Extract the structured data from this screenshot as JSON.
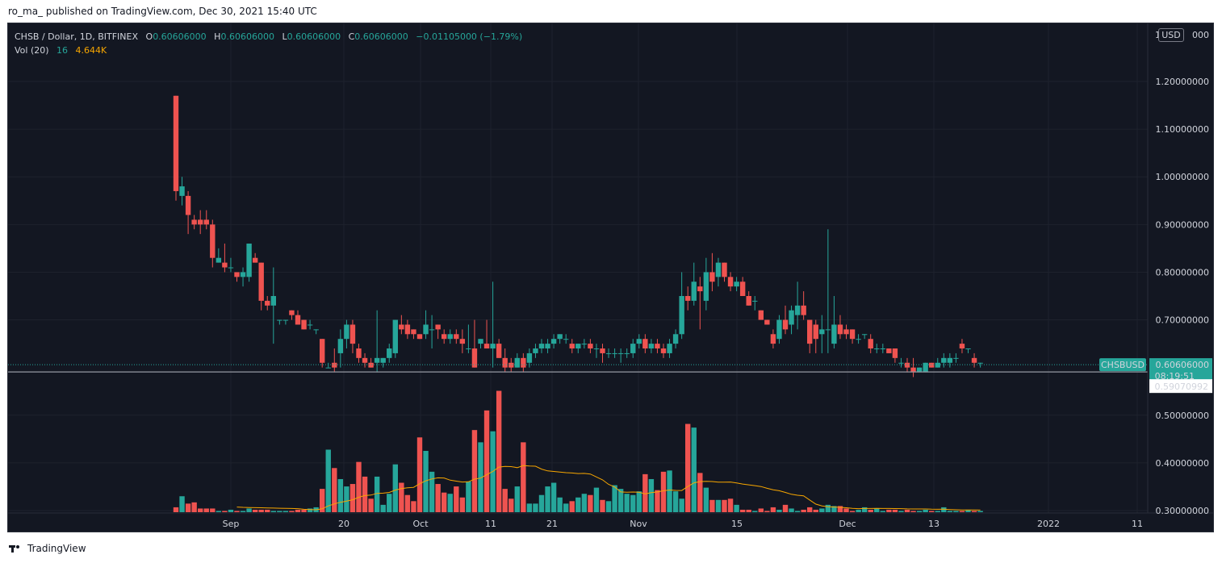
{
  "header": {
    "published_line": "ro_ma_ published on TradingView.com, Dec 30, 2021 15:40 UTC"
  },
  "legend": {
    "symbol": "CHSB / Dollar, 1D, BITFINEX",
    "o_label": "O",
    "o_value": "0.60606000",
    "h_label": "H",
    "h_value": "0.60606000",
    "l_label": "L",
    "l_value": "0.60606000",
    "c_label": "C",
    "c_value": "0.60606000",
    "change": "−0.01105000 (−1.79%)",
    "vol_label": "Vol (20)",
    "vol_value1": "16",
    "vol_value2": "4.644K"
  },
  "price_axis": {
    "currency_badge": "USD",
    "top_partial": "1.3",
    "top_partial_tail": "000",
    "ticks": [
      "1.20000000",
      "1.10000000",
      "1.00000000",
      "0.90000000",
      "0.80000000",
      "0.70000000",
      "0.50000000",
      "0.40000000",
      "0.30000000"
    ],
    "symbol_tag": "CHSBUSD",
    "last_price_label": "0.60606000",
    "countdown": "08:19:51",
    "crosshair_label": "0.59070992"
  },
  "time_axis": {
    "labels": [
      "Sep",
      "20",
      "Oct",
      "11",
      "21",
      "Nov",
      "15",
      "Dec",
      "13",
      "2022",
      "11"
    ]
  },
  "footer": {
    "brand": "TradingView"
  },
  "colors": {
    "background": "#131722",
    "up": "#26a69a",
    "down": "#ef5350",
    "ma": "#f7a600",
    "grid": "#1e222d",
    "axis_text": "#d1d4dc",
    "last_price_bg": "#26a69a"
  },
  "chart_data": {
    "type": "candlestick",
    "symbol": "CHSB / Dollar",
    "interval": "1D",
    "exchange": "BITFINEX",
    "y_price_range": [
      0.3,
      1.3
    ],
    "x_first_date": "2021-08-25",
    "candles": [
      {
        "date": "2021-08-25",
        "o": 1.17,
        "h": 1.17,
        "l": 0.95,
        "c": 0.97
      },
      {
        "date": "2021-08-26",
        "o": 0.96,
        "h": 1.0,
        "l": 0.94,
        "c": 0.98
      },
      {
        "date": "2021-08-27",
        "o": 0.96,
        "h": 0.97,
        "l": 0.88,
        "c": 0.92
      },
      {
        "date": "2021-08-28",
        "o": 0.91,
        "h": 0.92,
        "l": 0.89,
        "c": 0.9
      },
      {
        "date": "2021-08-29",
        "o": 0.91,
        "h": 0.93,
        "l": 0.88,
        "c": 0.9
      },
      {
        "date": "2021-08-30",
        "o": 0.91,
        "h": 0.93,
        "l": 0.89,
        "c": 0.9
      },
      {
        "date": "2021-08-31",
        "o": 0.9,
        "h": 0.91,
        "l": 0.81,
        "c": 0.83
      },
      {
        "date": "2021-09-01",
        "o": 0.82,
        "h": 0.85,
        "l": 0.82,
        "c": 0.83
      },
      {
        "date": "2021-09-02",
        "o": 0.82,
        "h": 0.86,
        "l": 0.8,
        "c": 0.81
      },
      {
        "date": "2021-09-03",
        "o": 0.81,
        "h": 0.83,
        "l": 0.8,
        "c": 0.81
      },
      {
        "date": "2021-09-04",
        "o": 0.8,
        "h": 0.8,
        "l": 0.78,
        "c": 0.79
      },
      {
        "date": "2021-09-05",
        "o": 0.79,
        "h": 0.81,
        "l": 0.77,
        "c": 0.8
      },
      {
        "date": "2021-09-06",
        "o": 0.79,
        "h": 0.86,
        "l": 0.78,
        "c": 0.86
      },
      {
        "date": "2021-09-07",
        "o": 0.83,
        "h": 0.84,
        "l": 0.82,
        "c": 0.82
      },
      {
        "date": "2021-09-08",
        "o": 0.82,
        "h": 0.82,
        "l": 0.72,
        "c": 0.74
      },
      {
        "date": "2021-09-09",
        "o": 0.74,
        "h": 0.75,
        "l": 0.72,
        "c": 0.73
      },
      {
        "date": "2021-09-10",
        "o": 0.73,
        "h": 0.81,
        "l": 0.65,
        "c": 0.75
      },
      {
        "date": "2021-09-11",
        "o": 0.7,
        "h": 0.7,
        "l": 0.69,
        "c": 0.7
      },
      {
        "date": "2021-09-12",
        "o": 0.7,
        "h": 0.7,
        "l": 0.69,
        "c": 0.7
      },
      {
        "date": "2021-09-13",
        "o": 0.72,
        "h": 0.72,
        "l": 0.7,
        "c": 0.71
      },
      {
        "date": "2021-09-14",
        "o": 0.71,
        "h": 0.72,
        "l": 0.69,
        "c": 0.69
      },
      {
        "date": "2021-09-15",
        "o": 0.7,
        "h": 0.7,
        "l": 0.68,
        "c": 0.68
      },
      {
        "date": "2021-09-16",
        "o": 0.69,
        "h": 0.7,
        "l": 0.68,
        "c": 0.69
      },
      {
        "date": "2021-09-17",
        "o": 0.68,
        "h": 0.68,
        "l": 0.67,
        "c": 0.68
      },
      {
        "date": "2021-09-18",
        "o": 0.66,
        "h": 0.66,
        "l": 0.6,
        "c": 0.61
      },
      {
        "date": "2021-09-19",
        "o": 0.6,
        "h": 0.61,
        "l": 0.6,
        "c": 0.6
      },
      {
        "date": "2021-09-20",
        "o": 0.61,
        "h": 0.64,
        "l": 0.59,
        "c": 0.6
      },
      {
        "date": "2021-09-21",
        "o": 0.63,
        "h": 0.68,
        "l": 0.6,
        "c": 0.66
      },
      {
        "date": "2021-09-22",
        "o": 0.66,
        "h": 0.7,
        "l": 0.64,
        "c": 0.69
      },
      {
        "date": "2021-09-23",
        "o": 0.69,
        "h": 0.7,
        "l": 0.63,
        "c": 0.65
      },
      {
        "date": "2021-09-24",
        "o": 0.64,
        "h": 0.65,
        "l": 0.61,
        "c": 0.62
      },
      {
        "date": "2021-09-25",
        "o": 0.62,
        "h": 0.63,
        "l": 0.6,
        "c": 0.61
      },
      {
        "date": "2021-09-26",
        "o": 0.61,
        "h": 0.62,
        "l": 0.6,
        "c": 0.6
      },
      {
        "date": "2021-09-27",
        "o": 0.61,
        "h": 0.72,
        "l": 0.59,
        "c": 0.62
      },
      {
        "date": "2021-09-28",
        "o": 0.61,
        "h": 0.62,
        "l": 0.6,
        "c": 0.62
      },
      {
        "date": "2021-09-29",
        "o": 0.62,
        "h": 0.65,
        "l": 0.61,
        "c": 0.64
      },
      {
        "date": "2021-09-30",
        "o": 0.63,
        "h": 0.7,
        "l": 0.62,
        "c": 0.7
      },
      {
        "date": "2021-10-01",
        "o": 0.69,
        "h": 0.71,
        "l": 0.67,
        "c": 0.68
      },
      {
        "date": "2021-10-02",
        "o": 0.69,
        "h": 0.7,
        "l": 0.66,
        "c": 0.67
      },
      {
        "date": "2021-10-03",
        "o": 0.68,
        "h": 0.68,
        "l": 0.66,
        "c": 0.67
      },
      {
        "date": "2021-10-04",
        "o": 0.67,
        "h": 0.67,
        "l": 0.66,
        "c": 0.66
      },
      {
        "date": "2021-10-05",
        "o": 0.67,
        "h": 0.72,
        "l": 0.66,
        "c": 0.69
      },
      {
        "date": "2021-10-06",
        "o": 0.68,
        "h": 0.71,
        "l": 0.64,
        "c": 0.68
      },
      {
        "date": "2021-10-07",
        "o": 0.69,
        "h": 0.69,
        "l": 0.66,
        "c": 0.68
      },
      {
        "date": "2021-10-08",
        "o": 0.67,
        "h": 0.68,
        "l": 0.65,
        "c": 0.66
      },
      {
        "date": "2021-10-09",
        "o": 0.66,
        "h": 0.68,
        "l": 0.65,
        "c": 0.67
      },
      {
        "date": "2021-10-10",
        "o": 0.67,
        "h": 0.68,
        "l": 0.65,
        "c": 0.66
      },
      {
        "date": "2021-10-11",
        "o": 0.66,
        "h": 0.68,
        "l": 0.63,
        "c": 0.65
      },
      {
        "date": "2021-10-12",
        "o": 0.64,
        "h": 0.69,
        "l": 0.63,
        "c": 0.64
      },
      {
        "date": "2021-10-13",
        "o": 0.64,
        "h": 0.7,
        "l": 0.6,
        "c": 0.6
      },
      {
        "date": "2021-10-14",
        "o": 0.65,
        "h": 0.66,
        "l": 0.64,
        "c": 0.66
      },
      {
        "date": "2021-10-15",
        "o": 0.65,
        "h": 0.7,
        "l": 0.64,
        "c": 0.64
      },
      {
        "date": "2021-10-16",
        "o": 0.64,
        "h": 0.78,
        "l": 0.6,
        "c": 0.65
      },
      {
        "date": "2021-10-17",
        "o": 0.65,
        "h": 0.66,
        "l": 0.62,
        "c": 0.62
      },
      {
        "date": "2021-10-18",
        "o": 0.62,
        "h": 0.64,
        "l": 0.59,
        "c": 0.6
      },
      {
        "date": "2021-10-19",
        "o": 0.61,
        "h": 0.62,
        "l": 0.59,
        "c": 0.6
      },
      {
        "date": "2021-10-20",
        "o": 0.6,
        "h": 0.63,
        "l": 0.6,
        "c": 0.62
      },
      {
        "date": "2021-10-21",
        "o": 0.62,
        "h": 0.63,
        "l": 0.59,
        "c": 0.6
      },
      {
        "date": "2021-10-22",
        "o": 0.61,
        "h": 0.64,
        "l": 0.6,
        "c": 0.63
      },
      {
        "date": "2021-10-23",
        "o": 0.63,
        "h": 0.65,
        "l": 0.62,
        "c": 0.64
      },
      {
        "date": "2021-10-24",
        "o": 0.64,
        "h": 0.66,
        "l": 0.63,
        "c": 0.65
      },
      {
        "date": "2021-10-25",
        "o": 0.64,
        "h": 0.66,
        "l": 0.63,
        "c": 0.65
      },
      {
        "date": "2021-10-26",
        "o": 0.65,
        "h": 0.67,
        "l": 0.64,
        "c": 0.66
      },
      {
        "date": "2021-10-27",
        "o": 0.66,
        "h": 0.67,
        "l": 0.65,
        "c": 0.67
      },
      {
        "date": "2021-10-28",
        "o": 0.66,
        "h": 0.67,
        "l": 0.65,
        "c": 0.66
      },
      {
        "date": "2021-10-29",
        "o": 0.65,
        "h": 0.66,
        "l": 0.63,
        "c": 0.64
      },
      {
        "date": "2021-10-30",
        "o": 0.64,
        "h": 0.65,
        "l": 0.63,
        "c": 0.65
      },
      {
        "date": "2021-10-31",
        "o": 0.65,
        "h": 0.66,
        "l": 0.64,
        "c": 0.65
      },
      {
        "date": "2021-11-01",
        "o": 0.65,
        "h": 0.66,
        "l": 0.63,
        "c": 0.64
      },
      {
        "date": "2021-11-02",
        "o": 0.64,
        "h": 0.65,
        "l": 0.62,
        "c": 0.64
      },
      {
        "date": "2021-11-03",
        "o": 0.64,
        "h": 0.65,
        "l": 0.61,
        "c": 0.63
      },
      {
        "date": "2021-11-04",
        "o": 0.63,
        "h": 0.64,
        "l": 0.62,
        "c": 0.63
      },
      {
        "date": "2021-11-05",
        "o": 0.63,
        "h": 0.64,
        "l": 0.62,
        "c": 0.63
      },
      {
        "date": "2021-11-06",
        "o": 0.63,
        "h": 0.64,
        "l": 0.61,
        "c": 0.63
      },
      {
        "date": "2021-11-07",
        "o": 0.63,
        "h": 0.64,
        "l": 0.62,
        "c": 0.63
      },
      {
        "date": "2021-11-08",
        "o": 0.63,
        "h": 0.66,
        "l": 0.62,
        "c": 0.65
      },
      {
        "date": "2021-11-09",
        "o": 0.65,
        "h": 0.67,
        "l": 0.64,
        "c": 0.66
      },
      {
        "date": "2021-11-10",
        "o": 0.66,
        "h": 0.67,
        "l": 0.63,
        "c": 0.64
      },
      {
        "date": "2021-11-11",
        "o": 0.64,
        "h": 0.66,
        "l": 0.63,
        "c": 0.65
      },
      {
        "date": "2021-11-12",
        "o": 0.65,
        "h": 0.66,
        "l": 0.63,
        "c": 0.64
      },
      {
        "date": "2021-11-13",
        "o": 0.64,
        "h": 0.65,
        "l": 0.62,
        "c": 0.63
      },
      {
        "date": "2021-11-14",
        "o": 0.63,
        "h": 0.66,
        "l": 0.62,
        "c": 0.65
      },
      {
        "date": "2021-11-15",
        "o": 0.65,
        "h": 0.68,
        "l": 0.64,
        "c": 0.67
      },
      {
        "date": "2021-11-16",
        "o": 0.67,
        "h": 0.8,
        "l": 0.66,
        "c": 0.75
      },
      {
        "date": "2021-11-17",
        "o": 0.75,
        "h": 0.77,
        "l": 0.72,
        "c": 0.74
      },
      {
        "date": "2021-11-18",
        "o": 0.74,
        "h": 0.82,
        "l": 0.73,
        "c": 0.78
      },
      {
        "date": "2021-11-19",
        "o": 0.77,
        "h": 0.79,
        "l": 0.68,
        "c": 0.76
      },
      {
        "date": "2021-11-20",
        "o": 0.74,
        "h": 0.83,
        "l": 0.72,
        "c": 0.8
      },
      {
        "date": "2021-11-21",
        "o": 0.8,
        "h": 0.84,
        "l": 0.76,
        "c": 0.78
      },
      {
        "date": "2021-11-22",
        "o": 0.79,
        "h": 0.83,
        "l": 0.77,
        "c": 0.82
      },
      {
        "date": "2021-11-23",
        "o": 0.82,
        "h": 0.82,
        "l": 0.78,
        "c": 0.79
      },
      {
        "date": "2021-11-24",
        "o": 0.79,
        "h": 0.8,
        "l": 0.76,
        "c": 0.77
      },
      {
        "date": "2021-11-25",
        "o": 0.77,
        "h": 0.79,
        "l": 0.76,
        "c": 0.78
      },
      {
        "date": "2021-11-26",
        "o": 0.78,
        "h": 0.79,
        "l": 0.75,
        "c": 0.75
      },
      {
        "date": "2021-11-27",
        "o": 0.75,
        "h": 0.76,
        "l": 0.73,
        "c": 0.73
      },
      {
        "date": "2021-11-28",
        "o": 0.74,
        "h": 0.75,
        "l": 0.72,
        "c": 0.74
      },
      {
        "date": "2021-11-29",
        "o": 0.72,
        "h": 0.72,
        "l": 0.7,
        "c": 0.7
      },
      {
        "date": "2021-11-30",
        "o": 0.7,
        "h": 0.7,
        "l": 0.69,
        "c": 0.69
      },
      {
        "date": "2021-12-01",
        "o": 0.67,
        "h": 0.68,
        "l": 0.64,
        "c": 0.65
      },
      {
        "date": "2021-12-02",
        "o": 0.66,
        "h": 0.71,
        "l": 0.65,
        "c": 0.7
      },
      {
        "date": "2021-12-03",
        "o": 0.7,
        "h": 0.73,
        "l": 0.67,
        "c": 0.68
      },
      {
        "date": "2021-12-04",
        "o": 0.69,
        "h": 0.73,
        "l": 0.67,
        "c": 0.72
      },
      {
        "date": "2021-12-05",
        "o": 0.71,
        "h": 0.78,
        "l": 0.68,
        "c": 0.73
      },
      {
        "date": "2021-12-06",
        "o": 0.73,
        "h": 0.76,
        "l": 0.7,
        "c": 0.71
      },
      {
        "date": "2021-12-07",
        "o": 0.7,
        "h": 0.7,
        "l": 0.63,
        "c": 0.65
      },
      {
        "date": "2021-12-08",
        "o": 0.69,
        "h": 0.7,
        "l": 0.63,
        "c": 0.66
      },
      {
        "date": "2021-12-09",
        "o": 0.67,
        "h": 0.71,
        "l": 0.63,
        "c": 0.68
      },
      {
        "date": "2021-12-10",
        "o": 0.68,
        "h": 0.89,
        "l": 0.63,
        "c": 0.68
      },
      {
        "date": "2021-12-11",
        "o": 0.65,
        "h": 0.75,
        "l": 0.64,
        "c": 0.69
      },
      {
        "date": "2021-12-12",
        "o": 0.69,
        "h": 0.71,
        "l": 0.66,
        "c": 0.67
      },
      {
        "date": "2021-12-13",
        "o": 0.68,
        "h": 0.69,
        "l": 0.66,
        "c": 0.67
      },
      {
        "date": "2021-12-14",
        "o": 0.68,
        "h": 0.68,
        "l": 0.65,
        "c": 0.66
      },
      {
        "date": "2021-12-15",
        "o": 0.66,
        "h": 0.67,
        "l": 0.65,
        "c": 0.66
      },
      {
        "date": "2021-12-16",
        "o": 0.67,
        "h": 0.67,
        "l": 0.66,
        "c": 0.67
      },
      {
        "date": "2021-12-17",
        "o": 0.66,
        "h": 0.67,
        "l": 0.63,
        "c": 0.64
      },
      {
        "date": "2021-12-18",
        "o": 0.64,
        "h": 0.65,
        "l": 0.63,
        "c": 0.64
      },
      {
        "date": "2021-12-19",
        "o": 0.64,
        "h": 0.65,
        "l": 0.63,
        "c": 0.64
      },
      {
        "date": "2021-12-20",
        "o": 0.64,
        "h": 0.64,
        "l": 0.63,
        "c": 0.63
      },
      {
        "date": "2021-12-21",
        "o": 0.64,
        "h": 0.64,
        "l": 0.61,
        "c": 0.62
      },
      {
        "date": "2021-12-22",
        "o": 0.61,
        "h": 0.62,
        "l": 0.6,
        "c": 0.61
      },
      {
        "date": "2021-12-23",
        "o": 0.61,
        "h": 0.62,
        "l": 0.59,
        "c": 0.6
      },
      {
        "date": "2021-12-24",
        "o": 0.6,
        "h": 0.62,
        "l": 0.58,
        "c": 0.59
      },
      {
        "date": "2021-12-25",
        "o": 0.59,
        "h": 0.6,
        "l": 0.59,
        "c": 0.6
      },
      {
        "date": "2021-12-26",
        "o": 0.59,
        "h": 0.61,
        "l": 0.59,
        "c": 0.61
      },
      {
        "date": "2021-12-27",
        "o": 0.61,
        "h": 0.61,
        "l": 0.6,
        "c": 0.6
      },
      {
        "date": "2021-12-28",
        "o": 0.6,
        "h": 0.62,
        "l": 0.6,
        "c": 0.61
      },
      {
        "date": "2021-12-29",
        "o": 0.61,
        "h": 0.63,
        "l": 0.6,
        "c": 0.62
      },
      {
        "date": "2021-12-30",
        "o": 0.61,
        "h": 0.63,
        "l": 0.6,
        "c": 0.62
      },
      {
        "date": "2021-12-31",
        "o": 0.62,
        "h": 0.63,
        "l": 0.61,
        "c": 0.62
      },
      {
        "date": "2022-01-01",
        "o": 0.65,
        "h": 0.66,
        "l": 0.63,
        "c": 0.64
      },
      {
        "date": "2022-01-02",
        "o": 0.64,
        "h": 0.64,
        "l": 0.63,
        "c": 0.64
      },
      {
        "date": "2022-01-03",
        "o": 0.62,
        "h": 0.63,
        "l": 0.6,
        "c": 0.61
      },
      {
        "date": "2022-01-04",
        "o": 0.61,
        "h": 0.61,
        "l": 0.6,
        "c": 0.61
      }
    ],
    "volume_bars_relative": [
      0.04,
      0.13,
      0.07,
      0.08,
      0.03,
      0.03,
      0.03,
      0.01,
      0.01,
      0.02,
      0.01,
      0.01,
      0.03,
      0.02,
      0.02,
      0.02,
      0.01,
      0.01,
      0.01,
      0.01,
      0.02,
      0.02,
      0.03,
      0.04,
      0.19,
      0.51,
      0.36,
      0.27,
      0.21,
      0.23,
      0.41,
      0.29,
      0.11,
      0.29,
      0.06,
      0.15,
      0.39,
      0.24,
      0.14,
      0.09,
      0.61,
      0.5,
      0.33,
      0.23,
      0.16,
      0.15,
      0.21,
      0.12,
      0.25,
      0.67,
      0.57,
      0.83,
      0.66,
      0.99,
      0.19,
      0.11,
      0.21,
      0.57,
      0.07,
      0.07,
      0.14,
      0.21,
      0.24,
      0.12,
      0.07,
      0.09,
      0.12,
      0.15,
      0.14,
      0.2,
      0.1,
      0.09,
      0.22,
      0.19,
      0.15,
      0.14,
      0.17,
      0.31,
      0.27,
      0.18,
      0.33,
      0.34,
      0.17,
      0.11,
      0.72,
      0.69,
      0.32,
      0.2,
      0.1,
      0.1,
      0.1,
      0.11,
      0.06,
      0.02,
      0.02,
      0.01,
      0.03,
      0.01,
      0.04,
      0.02,
      0.06,
      0.03,
      0.01,
      0.02,
      0.04,
      0.02,
      0.03,
      0.06,
      0.05,
      0.05,
      0.03,
      0.01,
      0.02,
      0.04,
      0.02,
      0.03,
      0.01,
      0.02,
      0.02,
      0.01,
      0.02,
      0.01,
      0.01,
      0.02,
      0.01,
      0.01,
      0.04,
      0.01,
      0.01,
      0.01,
      0.02,
      0.01,
      0.01,
      0.01,
      0.01
    ],
    "volume_ma_relative_shape": "smoothed 20-period average of volume_bars_relative",
    "last_price": 0.60606,
    "crosshair_price": 0.59070992
  }
}
